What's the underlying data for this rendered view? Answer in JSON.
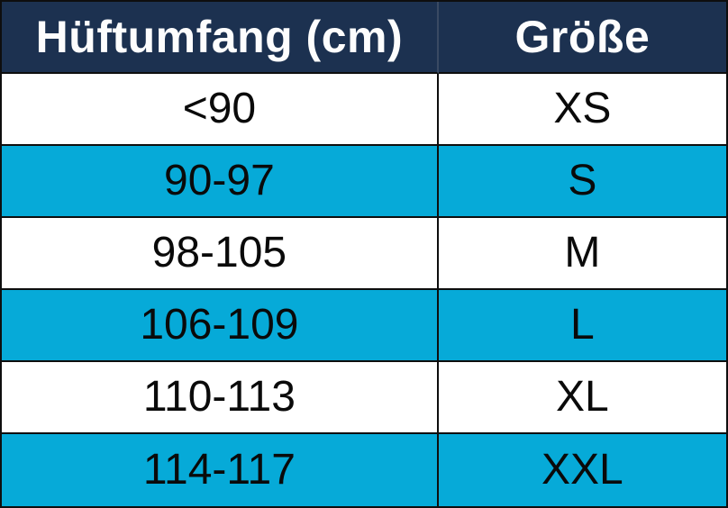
{
  "chart_data": {
    "type": "table",
    "title": "",
    "columns": [
      "Hüftumfang (cm)",
      "Größe"
    ],
    "rows": [
      [
        "<90",
        "XS"
      ],
      [
        "90-97",
        "S"
      ],
      [
        "98-105",
        "M"
      ],
      [
        "106-109",
        "L"
      ],
      [
        "110-113",
        "XL"
      ],
      [
        "114-117",
        "XXL"
      ]
    ],
    "layout_hints": {
      "header_position": "top",
      "alternating_rows": "white / cyan starting with white",
      "column_alignment": "center"
    }
  },
  "colors": {
    "header_bg": "#1c3150",
    "header_text": "#fdfdfd",
    "row_alt_bg": "#06aad8",
    "row_bg": "#ffffff",
    "cell_text": "#0a0a0a",
    "border": "#0e0e0e"
  }
}
